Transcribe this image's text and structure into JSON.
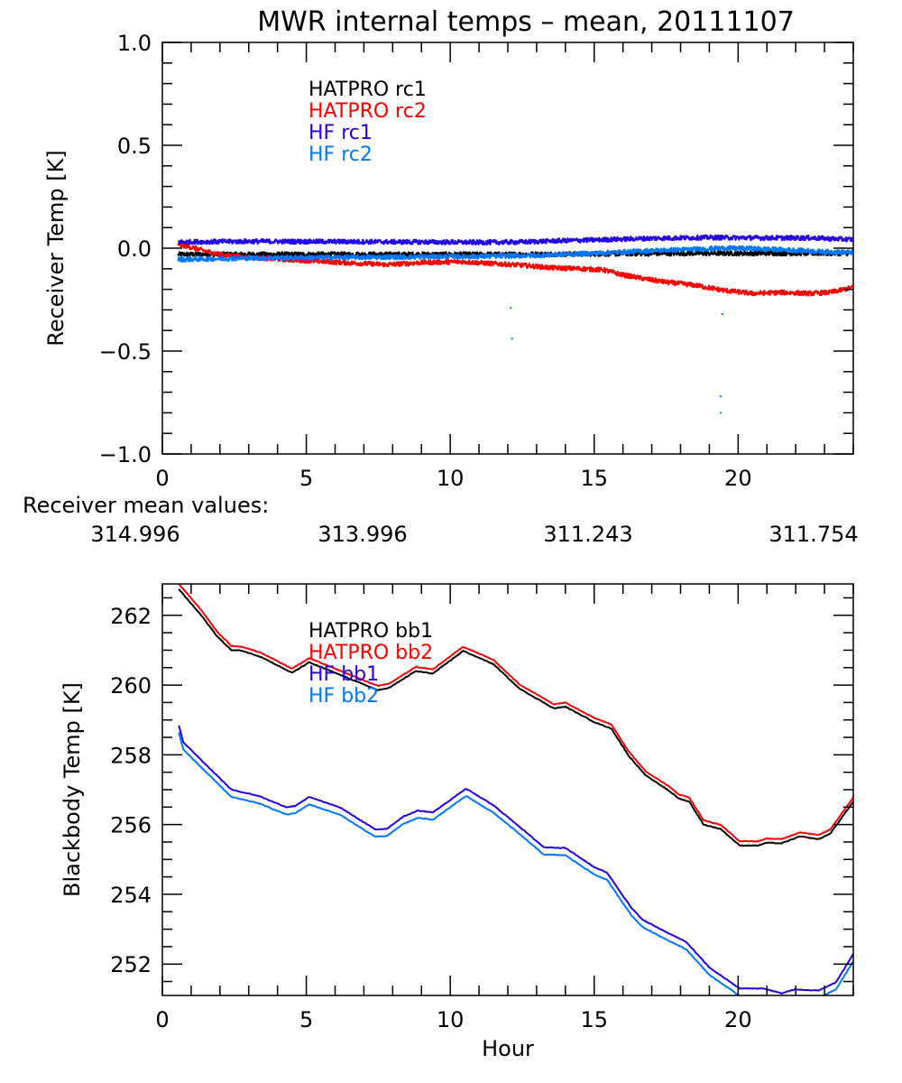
{
  "title": "MWR internal temps – mean, 20111107",
  "mean_values": {
    "label": "Receiver mean values:",
    "values": [
      {
        "text": "314.996",
        "color": "#000000"
      },
      {
        "text": "313.996",
        "color": "#ff0000"
      },
      {
        "text": "311.243",
        "color": "#2200e6"
      },
      {
        "text": "311.754",
        "color": "#0077ff"
      }
    ]
  },
  "chart_data": [
    {
      "type": "line",
      "panel": "top",
      "title": "MWR internal temps – mean, 20111107",
      "xlabel": "",
      "ylabel": "Receiver Temp [K]",
      "xlim": [
        0,
        24
      ],
      "ylim": [
        -1.0,
        1.0
      ],
      "xticks": [
        0,
        5,
        10,
        15,
        20
      ],
      "xtick_labels": [
        "0",
        "5",
        "10",
        "15",
        "20"
      ],
      "x_minor_step": 1,
      "yticks": [
        -1.0,
        -0.5,
        0.0,
        0.5,
        1.0
      ],
      "ytick_labels": [
        "−1.0",
        "−0.5",
        "0.0",
        "0.5",
        "1.0"
      ],
      "y_minor_step": 0.1,
      "grid": false,
      "legend_position": "top-center",
      "series": [
        {
          "name": "HATPRO rc1",
          "color": "#000000",
          "noisy": true,
          "x": [
            0.55,
            3,
            6,
            9,
            12,
            15,
            18,
            21,
            24
          ],
          "y": [
            -0.03,
            -0.03,
            -0.03,
            -0.03,
            -0.03,
            -0.028,
            -0.025,
            -0.025,
            -0.025
          ]
        },
        {
          "name": "HATPRO rc2",
          "color": "#ff0000",
          "noisy": true,
          "x": [
            0.55,
            1.0,
            1.5,
            2.2,
            3.0,
            4.7,
            6.0,
            7.8,
            9.0,
            10.4,
            11.5,
            12.5,
            13.5,
            14.5,
            15.3,
            16.0,
            16.8,
            17.5,
            18.5,
            19.5,
            20.5,
            21.5,
            22.5,
            23.2,
            24.0
          ],
          "y": [
            0.018,
            0.005,
            -0.015,
            -0.036,
            -0.045,
            -0.058,
            -0.068,
            -0.08,
            -0.07,
            -0.066,
            -0.075,
            -0.083,
            -0.095,
            -0.1,
            -0.105,
            -0.13,
            -0.15,
            -0.165,
            -0.18,
            -0.205,
            -0.22,
            -0.215,
            -0.22,
            -0.215,
            -0.19
          ]
        },
        {
          "name": "HF rc1",
          "color": "#2200e6",
          "noisy": true,
          "x": [
            0.55,
            3,
            6,
            9,
            11,
            12.5,
            13.5,
            15,
            17,
            19,
            21,
            22.5,
            24
          ],
          "y": [
            0.03,
            0.033,
            0.032,
            0.03,
            0.028,
            0.03,
            0.035,
            0.04,
            0.048,
            0.052,
            0.05,
            0.05,
            0.042
          ]
        },
        {
          "name": "HF rc2",
          "color": "#0077ff",
          "noisy": true,
          "x": [
            0.55,
            3,
            6,
            9,
            11,
            13,
            15,
            17,
            18.5,
            19.5,
            20.5,
            22,
            23,
            24
          ],
          "y": [
            -0.055,
            -0.048,
            -0.045,
            -0.042,
            -0.04,
            -0.035,
            -0.025,
            -0.012,
            -0.005,
            0.0,
            -0.002,
            -0.01,
            -0.018,
            -0.02
          ],
          "outliers": [
            [
              12.1,
              -0.29
            ],
            [
              12.15,
              -0.44
            ],
            [
              19.45,
              -0.32
            ],
            [
              19.4,
              -0.72
            ],
            [
              19.4,
              -0.8
            ]
          ]
        }
      ]
    },
    {
      "type": "line",
      "panel": "bottom",
      "xlabel": "Hour",
      "ylabel": "Blackbody Temp [K]",
      "xlim": [
        0,
        24
      ],
      "ylim": [
        251.1,
        262.9
      ],
      "xticks": [
        0,
        5,
        10,
        15,
        20
      ],
      "xtick_labels": [
        "0",
        "5",
        "10",
        "15",
        "20"
      ],
      "x_minor_step": 1,
      "yticks": [
        252,
        254,
        256,
        258,
        260,
        262
      ],
      "ytick_labels": [
        "252",
        "254",
        "256",
        "258",
        "260",
        "262"
      ],
      "y_minor_step": 0.5,
      "grid": false,
      "legend_position": "top-center",
      "series": [
        {
          "name": "HATPRO bb1",
          "color": "#000000",
          "x": [
            0.57,
            1.35,
            1.9,
            2.4,
            2.75,
            3.45,
            4.5,
            5.1,
            6.3,
            7.5,
            7.9,
            8.8,
            9.4,
            10.45,
            11.5,
            12.4,
            13.6,
            14.0,
            15.0,
            15.6,
            16.2,
            16.8,
            17.55,
            17.95,
            18.3,
            18.8,
            19.4,
            20.05,
            20.7,
            21.0,
            21.5,
            22.15,
            22.8,
            23.2,
            24.0
          ],
          "y": [
            262.75,
            262.0,
            261.4,
            261.0,
            260.99,
            260.8,
            260.35,
            260.65,
            260.25,
            259.85,
            259.93,
            260.4,
            260.33,
            260.98,
            260.6,
            259.9,
            259.33,
            259.38,
            258.94,
            258.75,
            257.97,
            257.4,
            257.0,
            256.74,
            256.66,
            256.0,
            255.87,
            255.4,
            255.4,
            255.48,
            255.46,
            255.66,
            255.58,
            255.74,
            256.66
          ]
        },
        {
          "name": "HATPRO bb2",
          "color": "#ff0000",
          "x": [
            0.57,
            1.35,
            1.9,
            2.4,
            2.75,
            3.45,
            4.5,
            5.1,
            6.3,
            7.5,
            7.9,
            8.8,
            9.4,
            10.45,
            11.5,
            12.4,
            13.6,
            14.0,
            15.0,
            15.6,
            16.2,
            16.8,
            17.55,
            17.95,
            18.3,
            18.8,
            19.4,
            20.05,
            20.7,
            21.0,
            21.5,
            22.15,
            22.8,
            23.2,
            24.0
          ],
          "y": [
            262.9,
            262.15,
            261.53,
            261.12,
            261.1,
            260.92,
            260.47,
            260.77,
            260.37,
            259.97,
            260.05,
            260.52,
            260.45,
            261.1,
            260.72,
            260.02,
            259.45,
            259.5,
            259.06,
            258.87,
            258.09,
            257.52,
            257.12,
            256.86,
            256.78,
            256.12,
            255.99,
            255.52,
            255.52,
            255.6,
            255.58,
            255.78,
            255.7,
            255.86,
            256.78
          ]
        },
        {
          "name": "HF bb1",
          "color": "#2200e6",
          "x": [
            0.57,
            0.73,
            1.46,
            2.4,
            3.35,
            4.3,
            4.6,
            5.1,
            6.2,
            7.0,
            7.4,
            7.8,
            8.35,
            8.87,
            9.4,
            10.55,
            11.5,
            12.2,
            13.25,
            14.0,
            15.0,
            15.45,
            16.3,
            16.7,
            17.45,
            18.2,
            19.0,
            20.05,
            20.9,
            21.5,
            21.95,
            22.8,
            23.4,
            24.0
          ],
          "y": [
            258.85,
            258.36,
            257.76,
            257.0,
            256.82,
            256.5,
            256.53,
            256.79,
            256.48,
            256.06,
            255.86,
            255.88,
            256.22,
            256.4,
            256.35,
            257.03,
            256.55,
            256.08,
            255.35,
            255.33,
            254.78,
            254.62,
            253.6,
            253.26,
            252.94,
            252.63,
            251.9,
            251.3,
            251.3,
            251.16,
            251.27,
            251.24,
            251.48,
            252.29
          ]
        },
        {
          "name": "HF bb2",
          "color": "#0077ff",
          "x": [
            0.57,
            0.73,
            1.46,
            2.4,
            3.35,
            4.3,
            4.6,
            5.1,
            6.2,
            7.0,
            7.4,
            7.8,
            8.35,
            8.87,
            9.4,
            10.55,
            11.5,
            12.2,
            13.25,
            14.0,
            15.0,
            15.45,
            16.3,
            16.7,
            17.45,
            18.2,
            19.0,
            20.05,
            20.9,
            21.5,
            21.95,
            22.8,
            23.4,
            24.0
          ],
          "y": [
            258.64,
            258.15,
            257.55,
            256.79,
            256.61,
            256.29,
            256.32,
            256.58,
            256.27,
            255.85,
            255.65,
            255.67,
            256.01,
            256.19,
            256.14,
            256.82,
            256.34,
            255.87,
            255.14,
            255.12,
            254.57,
            254.41,
            253.39,
            253.05,
            252.73,
            252.42,
            251.69,
            251.09,
            251.09,
            250.95,
            251.06,
            251.03,
            251.27,
            252.08
          ]
        }
      ]
    }
  ]
}
